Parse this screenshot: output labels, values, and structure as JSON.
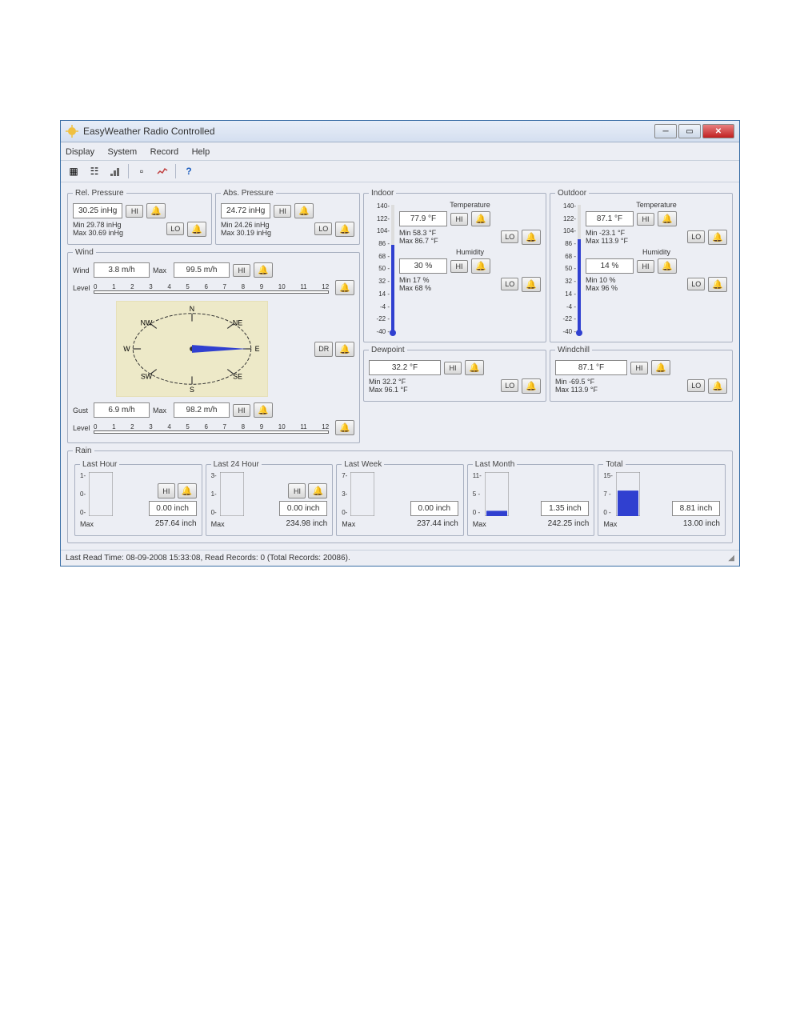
{
  "window": {
    "title": "EasyWeather Radio Controlled"
  },
  "menu": {
    "display": "Display",
    "system": "System",
    "record": "Record",
    "help": "Help"
  },
  "rel_pressure": {
    "legend": "Rel. Pressure",
    "value": "30.25 inHg",
    "hi": "HI",
    "lo": "LO",
    "min_lbl": "Min",
    "min_val": "29.78 inHg",
    "max_lbl": "Max",
    "max_val": "30.69 inHg"
  },
  "abs_pressure": {
    "legend": "Abs. Pressure",
    "value": "24.72 inHg",
    "hi": "HI",
    "lo": "LO",
    "min_lbl": "Min",
    "min_val": "24.26 inHg",
    "max_lbl": "Max",
    "max_val": "30.19 inHg"
  },
  "wind": {
    "legend": "Wind",
    "wind_lbl": "Wind",
    "wind_val": "3.8 m/h",
    "wind_max_lbl": "Max",
    "wind_max_val": "99.5 m/h",
    "hi": "HI",
    "dr": "DR",
    "level_lbl": "Level",
    "ticks": [
      "0",
      "1",
      "2",
      "3",
      "4",
      "5",
      "6",
      "7",
      "8",
      "9",
      "10",
      "11",
      "12"
    ],
    "compass_labels": {
      "n": "N",
      "ne": "NE",
      "e": "E",
      "se": "SE",
      "s": "S",
      "sw": "SW",
      "w": "W",
      "nw": "NW"
    },
    "gust_lbl": "Gust",
    "gust_val": "6.9 m/h",
    "gust_max_lbl": "Max",
    "gust_max_val": "98.2 m/h",
    "gust_hi": "HI",
    "gust_level_lbl": "Level"
  },
  "indoor": {
    "legend": "Indoor",
    "temp_title": "Temperature",
    "temp_val": "77.9 °F",
    "hi": "HI",
    "lo": "LO",
    "min_lbl": "Min",
    "min_val": "58.3 °F",
    "max_lbl": "Max",
    "max_val": "86.7 °F",
    "hum_title": "Humidity",
    "hum_val": "30 %",
    "hhi": "HI",
    "hlo": "LO",
    "hum_min_lbl": "Min",
    "hum_min_val": "17 %",
    "hum_max_lbl": "Max",
    "hum_max_val": "68 %",
    "scale": [
      "140-",
      "122-",
      "104-",
      "86 -",
      "68 -",
      "50 -",
      "32 -",
      "14 -",
      "-4 -",
      "-22 -",
      "-40 -"
    ]
  },
  "outdoor": {
    "legend": "Outdoor",
    "temp_title": "Temperature",
    "temp_val": "87.1 °F",
    "hi": "HI",
    "lo": "LO",
    "min_lbl": "Min",
    "min_val": "-23.1 °F",
    "max_lbl": "Max",
    "max_val": "113.9 °F",
    "hum_title": "Humidity",
    "hum_val": "14 %",
    "hhi": "HI",
    "hlo": "LO",
    "hum_min_lbl": "Min",
    "hum_min_val": "10 %",
    "hum_max_lbl": "Max",
    "hum_max_val": "96 %",
    "scale": [
      "140-",
      "122-",
      "104-",
      "86 -",
      "68 -",
      "50 -",
      "32 -",
      "14 -",
      "-4 -",
      "-22 -",
      "-40 -"
    ]
  },
  "dewpoint": {
    "legend": "Dewpoint",
    "value": "32.2 °F",
    "hi": "HI",
    "lo": "LO",
    "min_lbl": "Min",
    "min_val": "32.2 °F",
    "max_lbl": "Max",
    "max_val": "96.1 °F"
  },
  "windchill": {
    "legend": "Windchill",
    "value": "87.1 °F",
    "hi": "HI",
    "lo": "LO",
    "min_lbl": "Min",
    "min_val": "-69.5 °F",
    "max_lbl": "Max",
    "max_val": "113.9 °F"
  },
  "rain": {
    "legend": "Rain",
    "last_hour": {
      "legend": "Last Hour",
      "hi": "HI",
      "val": "0.00 inch",
      "max_lbl": "Max",
      "max_val": "257.64 inch",
      "ymax": "1-",
      "ymid": "0-",
      "ymin": "0-",
      "fill": 0
    },
    "last_24": {
      "legend": "Last 24 Hour",
      "hi": "HI",
      "val": "0.00 inch",
      "max_lbl": "Max",
      "max_val": "234.98 inch",
      "ymax": "3-",
      "ymid": "1-",
      "ymin": "0-",
      "fill": 0
    },
    "last_week": {
      "legend": "Last Week",
      "val": "0.00 inch",
      "max_lbl": "Max",
      "max_val": "237.44 inch",
      "ymax": "7-",
      "ymid": "3-",
      "ymin": "0-",
      "fill": 0
    },
    "last_month": {
      "legend": "Last Month",
      "val": "1.35 inch",
      "max_lbl": "Max",
      "max_val": "242.25 inch",
      "ymax": "11-",
      "ymid": "5 -",
      "ymin": "0 -",
      "fill": 0.12
    },
    "total": {
      "legend": "Total",
      "val": "8.81 inch",
      "max_lbl": "Max",
      "max_val": "13.00 inch",
      "ymax": "15-",
      "ymid": "7 -",
      "ymin": "0 -",
      "fill": 0.58
    }
  },
  "status": "Last Read Time: 08-09-2008 15:33:08, Read Records: 0 (Total Records: 20086)."
}
